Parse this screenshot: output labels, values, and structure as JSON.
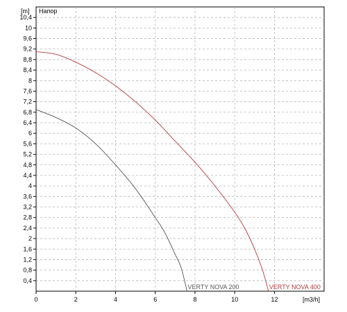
{
  "chart_data": {
    "type": "line",
    "title": "",
    "xlabel": "[m3/h]",
    "ylabel": "[m]",
    "ylabel_name": "Напор",
    "xlim": [
      0,
      14.5
    ],
    "ylim": [
      0,
      10.8
    ],
    "x_ticks": [
      0,
      2,
      4,
      6,
      8,
      10,
      12
    ],
    "x_tick_labels": [
      "0",
      "2",
      "4",
      "6",
      "8",
      "10",
      "12"
    ],
    "y_ticks": [
      0.4,
      0.8,
      1.2,
      1.6,
      2,
      2.4,
      2.8,
      3.2,
      3.6,
      4,
      4.4,
      4.8,
      5.2,
      5.6,
      6,
      6.4,
      6.8,
      7.2,
      7.6,
      8,
      8.4,
      8.8,
      9.2,
      9.6,
      10,
      10.4
    ],
    "y_tick_labels": [
      "0,4",
      "0,8",
      "1,2",
      "1,6",
      "2",
      "2,4",
      "2,8",
      "3,2",
      "3,6",
      "4",
      "4,4",
      "4,8",
      "5,2",
      "5,6",
      "6",
      "6,4",
      "6,8",
      "7,2",
      "7,6",
      "8",
      "8,4",
      "8,8",
      "9,2",
      "9,6",
      "10",
      "10,4"
    ],
    "grid": true,
    "legend": "none",
    "series": [
      {
        "name": "VERTY NOVA 200",
        "color": "#555555",
        "points": [
          [
            0,
            6.9
          ],
          [
            1,
            6.6
          ],
          [
            2,
            6.2
          ],
          [
            3,
            5.6
          ],
          [
            4,
            4.8
          ],
          [
            5,
            3.9
          ],
          [
            6,
            2.8
          ],
          [
            6.5,
            2.2
          ],
          [
            7,
            1.4
          ],
          [
            7.3,
            0.9
          ],
          [
            7.6,
            0
          ]
        ]
      },
      {
        "name": "VERTY NOVA 400",
        "color": "#b03a3a",
        "points": [
          [
            0,
            9.1
          ],
          [
            1,
            9.0
          ],
          [
            2,
            8.7
          ],
          [
            3,
            8.3
          ],
          [
            4,
            7.8
          ],
          [
            5,
            7.2
          ],
          [
            6,
            6.5
          ],
          [
            7,
            5.7
          ],
          [
            8,
            4.9
          ],
          [
            9,
            4.0
          ],
          [
            10,
            3.0
          ],
          [
            10.5,
            2.4
          ],
          [
            11,
            1.6
          ],
          [
            11.4,
            0.8
          ],
          [
            11.7,
            0
          ]
        ]
      }
    ]
  }
}
